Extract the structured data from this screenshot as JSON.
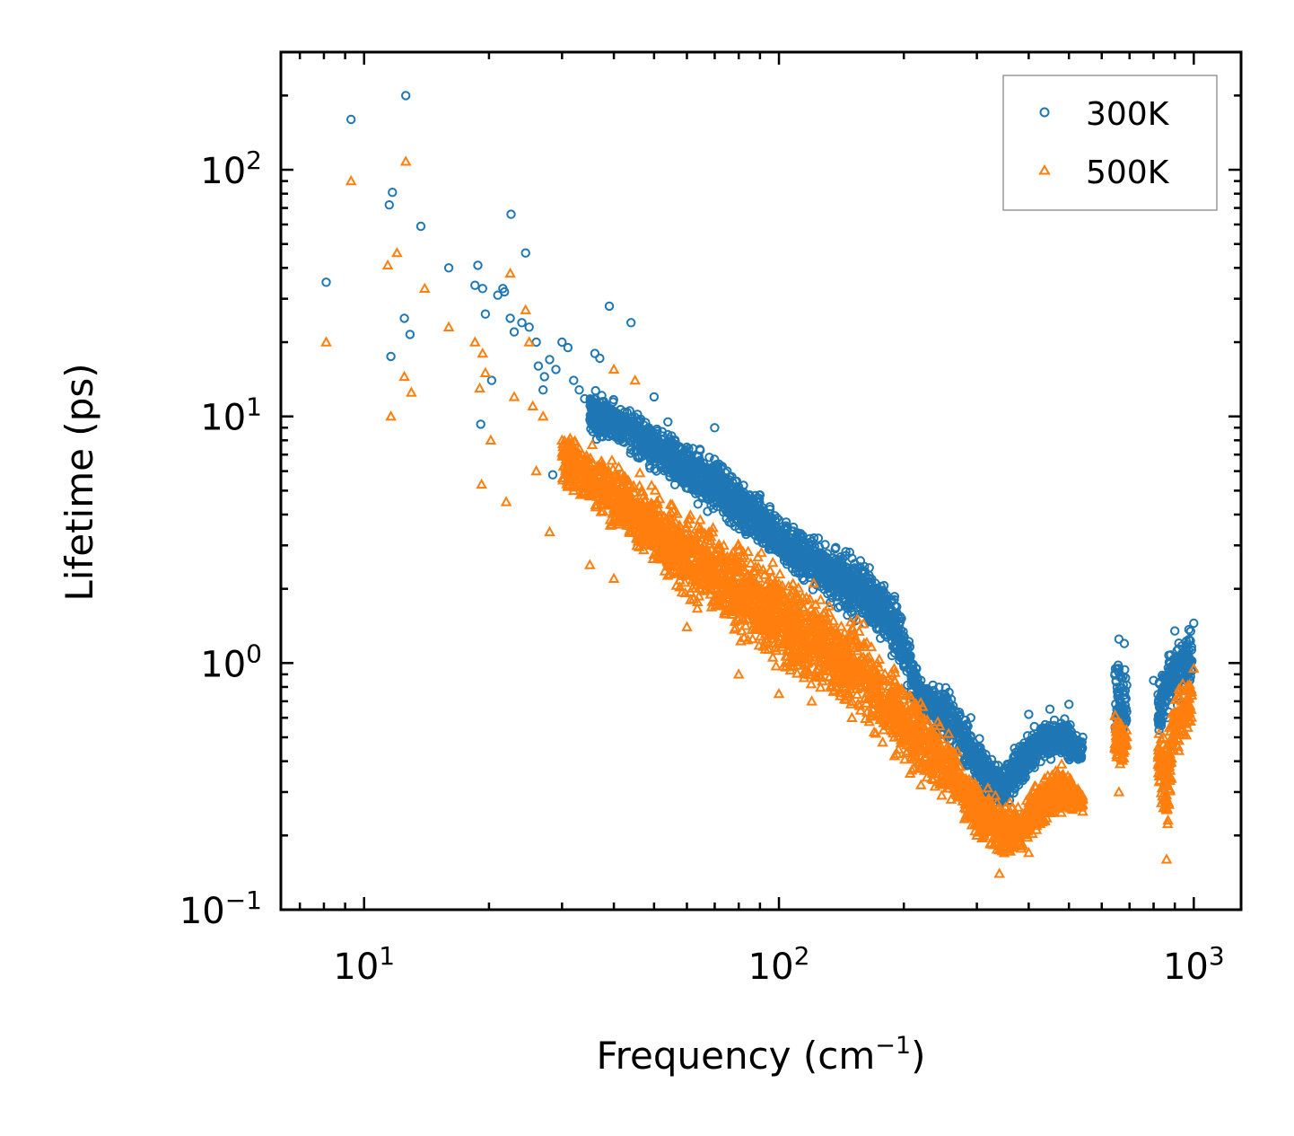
{
  "chart_data": {
    "type": "scatter",
    "title": "",
    "xlabel": "Frequency (cm⁻¹)",
    "xlabel_main": "Frequency (cm",
    "xlabel_sup": "−1",
    "xlabel_close": ")",
    "ylabel": "Lifetime (ps)",
    "xscale": "log",
    "yscale": "log",
    "xlim": [
      6.3,
      1300
    ],
    "ylim": [
      0.1,
      300
    ],
    "grid": false,
    "legend_position": "top-right",
    "x_ticks": [
      {
        "value": 10,
        "base": "10",
        "exp": "1"
      },
      {
        "value": 100,
        "base": "10",
        "exp": "2"
      },
      {
        "value": 1000,
        "base": "10",
        "exp": "3"
      }
    ],
    "y_ticks": [
      {
        "value": 0.1,
        "base": "10",
        "exp": "−1"
      },
      {
        "value": 1,
        "base": "10",
        "exp": "0"
      },
      {
        "value": 10,
        "base": "10",
        "exp": "1"
      },
      {
        "value": 100,
        "base": "10",
        "exp": "2"
      }
    ],
    "series": [
      {
        "name": "300K",
        "color": "#1f77b4",
        "marker": "circle",
        "points": [
          [
            8.1,
            35
          ],
          [
            9.3,
            160
          ],
          [
            11.5,
            72
          ],
          [
            11.7,
            81
          ],
          [
            12.6,
            200
          ],
          [
            13.7,
            59
          ],
          [
            11.6,
            17.5
          ],
          [
            12.5,
            25
          ],
          [
            12.9,
            21.5
          ],
          [
            16,
            40
          ],
          [
            18.5,
            34
          ],
          [
            18.8,
            41
          ],
          [
            19.3,
            33
          ],
          [
            19.6,
            26
          ],
          [
            19.1,
            9.3
          ],
          [
            20.3,
            14
          ],
          [
            21,
            31
          ],
          [
            21.6,
            33
          ],
          [
            21.8,
            32
          ],
          [
            22.5,
            25
          ],
          [
            22.6,
            66
          ],
          [
            23,
            22
          ],
          [
            24,
            24
          ],
          [
            24.5,
            46
          ],
          [
            25,
            23
          ],
          [
            26,
            20
          ],
          [
            26.3,
            16
          ],
          [
            27,
            12.8
          ],
          [
            27.2,
            14.5
          ],
          [
            28,
            17
          ],
          [
            28.5,
            5.8
          ],
          [
            29,
            15.5
          ],
          [
            30,
            20
          ],
          [
            31,
            19
          ],
          [
            32,
            14
          ],
          [
            33,
            12.8
          ],
          [
            34,
            11.8
          ],
          [
            36,
            18
          ],
          [
            37,
            17.2
          ],
          [
            38,
            11
          ],
          [
            39,
            28
          ],
          [
            40,
            9.8
          ],
          [
            44,
            24
          ],
          [
            46,
            9.5
          ],
          [
            50,
            12
          ],
          [
            54,
            9.5
          ],
          [
            60,
            7.5
          ],
          [
            70,
            9
          ],
          [
            75,
            6
          ],
          [
            80,
            5
          ],
          [
            85,
            4.8
          ],
          [
            90,
            4.8
          ],
          [
            100,
            3.8
          ],
          [
            110,
            3
          ],
          [
            120,
            2.6
          ],
          [
            130,
            2.4
          ],
          [
            140,
            2.2
          ],
          [
            150,
            2.05
          ],
          [
            160,
            2
          ],
          [
            175,
            1.8
          ],
          [
            190,
            1.1
          ],
          [
            200,
            1
          ],
          [
            220,
            0.85
          ],
          [
            250,
            0.7
          ],
          [
            270,
            0.55
          ],
          [
            290,
            0.6
          ],
          [
            300,
            0.4
          ],
          [
            330,
            0.28
          ],
          [
            360,
            0.32
          ],
          [
            400,
            0.62
          ],
          [
            450,
            0.65
          ],
          [
            500,
            0.68
          ],
          [
            540,
            0.5
          ],
          [
            660,
            1.25
          ],
          [
            680,
            1.2
          ],
          [
            800,
            0.85
          ],
          [
            850,
            0.8
          ],
          [
            900,
            1.35
          ],
          [
            1000,
            1.45
          ]
        ],
        "bands": [
          [
            [
              35,
              8,
              13.5
            ],
            [
              45,
              6.5,
              11
            ],
            [
              55,
              5,
              9
            ],
            [
              65,
              4,
              8
            ],
            [
              80,
              3.2,
              6
            ],
            [
              100,
              2.4,
              4.2
            ],
            [
              130,
              1.7,
              3.2
            ],
            [
              160,
              1.35,
              2.8
            ],
            [
              190,
              1.0,
              2.0
            ],
            [
              220,
              0.55,
              0.95
            ],
            [
              260,
              0.45,
              0.8
            ],
            [
              300,
              0.3,
              0.55
            ],
            [
              340,
              0.24,
              0.4
            ],
            [
              380,
              0.3,
              0.5
            ],
            [
              430,
              0.38,
              0.62
            ],
            [
              480,
              0.38,
              0.65
            ],
            [
              540,
              0.38,
              0.5
            ]
          ],
          [
            [
              645,
              0.4,
              1.25
            ],
            [
              665,
              0.4,
              1.15
            ],
            [
              690,
              0.45,
              1.0
            ]
          ],
          [
            [
              820,
              0.45,
              0.9
            ],
            [
              870,
              0.55,
              1.25
            ],
            [
              930,
              0.7,
              1.35
            ],
            [
              990,
              0.75,
              1.45
            ]
          ]
        ]
      },
      {
        "name": "500K",
        "color": "#ff7f0e",
        "marker": "triangle",
        "points": [
          [
            8.1,
            20
          ],
          [
            9.3,
            90
          ],
          [
            11.4,
            41
          ],
          [
            11.6,
            10
          ],
          [
            12,
            46
          ],
          [
            12.6,
            108
          ],
          [
            12.5,
            14.5
          ],
          [
            13,
            12.5
          ],
          [
            14,
            33
          ],
          [
            16,
            23
          ],
          [
            18.5,
            20
          ],
          [
            19,
            13
          ],
          [
            19.3,
            18
          ],
          [
            19.6,
            15
          ],
          [
            20.2,
            8
          ],
          [
            19.2,
            5.3
          ],
          [
            22,
            4.5
          ],
          [
            22.5,
            38
          ],
          [
            23,
            12
          ],
          [
            24.5,
            27
          ],
          [
            25,
            20
          ],
          [
            25.5,
            11
          ],
          [
            26,
            6
          ],
          [
            27,
            10
          ],
          [
            28,
            3.4
          ],
          [
            30,
            8
          ],
          [
            32,
            5
          ],
          [
            35,
            2.5
          ],
          [
            40,
            2.2
          ],
          [
            40,
            15.5
          ],
          [
            45,
            14
          ],
          [
            60,
            1.4
          ],
          [
            80,
            0.9
          ],
          [
            100,
            0.75
          ],
          [
            120,
            0.7
          ],
          [
            150,
            0.6
          ],
          [
            190,
            0.42
          ],
          [
            220,
            0.32
          ],
          [
            260,
            0.28
          ],
          [
            300,
            0.2
          ],
          [
            340,
            0.14
          ],
          [
            400,
            0.17
          ],
          [
            500,
            0.3
          ],
          [
            540,
            0.25
          ],
          [
            660,
            0.3
          ],
          [
            860,
            0.16
          ],
          [
            1000,
            0.95
          ]
        ],
        "bands": [
          [
            [
              30,
              5,
              9.5
            ],
            [
              40,
              3.2,
              7
            ],
            [
              50,
              2.2,
              5.5
            ],
            [
              60,
              1.6,
              4.5
            ],
            [
              80,
              1.2,
              3.5
            ],
            [
              100,
              0.9,
              2.6
            ],
            [
              130,
              0.65,
              2.0
            ],
            [
              160,
              0.5,
              1.6
            ],
            [
              190,
              0.4,
              1.05
            ],
            [
              220,
              0.3,
              0.8
            ],
            [
              260,
              0.25,
              0.52
            ],
            [
              300,
              0.19,
              0.36
            ],
            [
              340,
              0.15,
              0.3
            ],
            [
              380,
              0.16,
              0.28
            ],
            [
              430,
              0.2,
              0.38
            ],
            [
              480,
              0.23,
              0.42
            ],
            [
              540,
              0.25,
              0.3
            ]
          ],
          [
            [
              645,
              0.35,
              0.75
            ],
            [
              665,
              0.3,
              0.7
            ],
            [
              690,
              0.4,
              0.6
            ]
          ],
          [
            [
              820,
              0.3,
              0.6
            ],
            [
              860,
              0.17,
              0.55
            ],
            [
              900,
              0.4,
              0.8
            ],
            [
              990,
              0.5,
              1.0
            ]
          ]
        ]
      }
    ]
  }
}
